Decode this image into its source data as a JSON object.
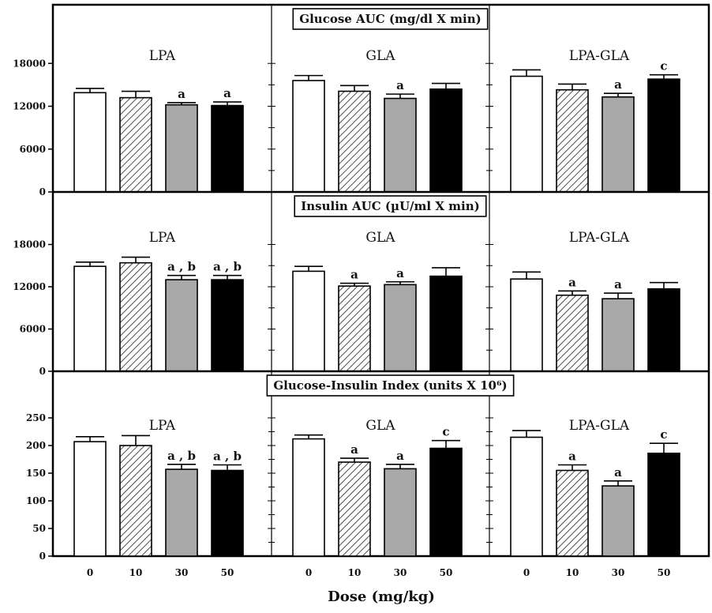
{
  "chart_data": {
    "type": "bar",
    "xlabel": "Dose (mg/kg)",
    "dose_labels": [
      "0",
      "10",
      "30",
      "50"
    ],
    "groups": [
      "LPA",
      "GLA",
      "LPA-GLA"
    ],
    "fills": [
      "#ffffff",
      "hatch",
      "#a8a8a8",
      "#000000"
    ],
    "panels": [
      {
        "title": "Glucose AUC (mg/dl X min)",
        "ylim": [
          0,
          24000
        ],
        "yticks": [
          {
            "value": 0,
            "label": "0"
          },
          {
            "value": 6000,
            "label": "6000"
          },
          {
            "value": 12000,
            "label": "12000"
          },
          {
            "value": 18000,
            "label": "18000"
          }
        ],
        "groups": [
          {
            "name": "LPA",
            "values": [
              13900,
              13200,
              12200,
              12100
            ],
            "errors": [
              600,
              900,
              300,
              500
            ],
            "annotations": [
              "",
              "",
              "a",
              "a"
            ]
          },
          {
            "name": "GLA",
            "values": [
              15600,
              14100,
              13100,
              14400
            ],
            "errors": [
              700,
              800,
              600,
              800
            ],
            "annotations": [
              "",
              "",
              "a",
              ""
            ]
          },
          {
            "name": "LPA-GLA",
            "values": [
              16200,
              14300,
              13300,
              15800
            ],
            "errors": [
              900,
              800,
              500,
              600
            ],
            "annotations": [
              "",
              "",
              "a",
              "c"
            ]
          }
        ]
      },
      {
        "title": "Insulin AUC (µU/ml X min)",
        "ylim": [
          0,
          24000
        ],
        "yticks": [
          {
            "value": 0,
            "label": "0"
          },
          {
            "value": 6000,
            "label": "6000"
          },
          {
            "value": 12000,
            "label": "12000"
          },
          {
            "value": 18000,
            "label": "18000"
          }
        ],
        "groups": [
          {
            "name": "LPA",
            "values": [
              14900,
              15400,
              13000,
              13000
            ],
            "errors": [
              600,
              800,
              600,
              600
            ],
            "annotations": [
              "",
              "",
              "a , b",
              "a , b"
            ]
          },
          {
            "name": "GLA",
            "values": [
              14200,
              12100,
              12300,
              13500
            ],
            "errors": [
              700,
              400,
              400,
              1200
            ],
            "annotations": [
              "",
              "a",
              "a",
              ""
            ]
          },
          {
            "name": "LPA-GLA",
            "values": [
              13100,
              10800,
              10300,
              11700
            ],
            "errors": [
              1000,
              600,
              800,
              900
            ],
            "annotations": [
              "",
              "a",
              "a",
              ""
            ]
          }
        ]
      },
      {
        "title": "Glucose-Insulin Index (units X 10⁶)",
        "ylim": [
          0,
          300
        ],
        "yticks": [
          {
            "value": 0,
            "label": "0"
          },
          {
            "value": 50,
            "label": "50"
          },
          {
            "value": 100,
            "label": "100"
          },
          {
            "value": 150,
            "label": "150"
          },
          {
            "value": 200,
            "label": "200"
          },
          {
            "value": 250,
            "label": "250"
          }
        ],
        "groups": [
          {
            "name": "LPA",
            "values": [
              207,
              200,
              157,
              155
            ],
            "errors": [
              9,
              18,
              9,
              10
            ],
            "annotations": [
              "",
              "",
              "a , b",
              "a , b"
            ]
          },
          {
            "name": "GLA",
            "values": [
              212,
              170,
              158,
              195
            ],
            "errors": [
              7,
              7,
              8,
              14
            ],
            "annotations": [
              "",
              "a",
              "a",
              "c"
            ]
          },
          {
            "name": "LPA-GLA",
            "values": [
              215,
              155,
              127,
              186
            ],
            "errors": [
              12,
              10,
              9,
              18
            ],
            "annotations": [
              "",
              "a",
              "a",
              "c"
            ]
          }
        ]
      }
    ]
  }
}
